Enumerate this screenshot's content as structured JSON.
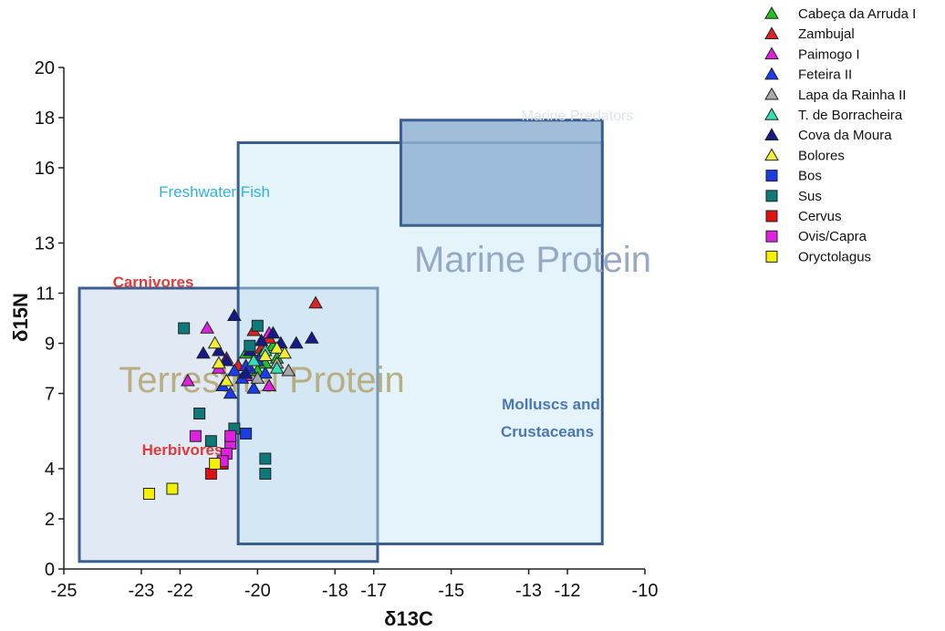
{
  "chart_data": {
    "type": "scatter",
    "xlabel": "δ13C",
    "ylabel": "δ15N",
    "xlim": [
      -25,
      -10
    ],
    "ylim": [
      0,
      20
    ],
    "x_ticks": [
      -25,
      -23,
      -22,
      -20,
      -18,
      -17,
      -15,
      -13,
      -12,
      -10
    ],
    "y_ticks": [
      0,
      2,
      4,
      7,
      9,
      11,
      13,
      16,
      18,
      20
    ],
    "grid": false,
    "legend_position": "top-right",
    "regions": [
      {
        "label": "Terrestrial Protein",
        "x_range": [
          -24.6,
          -16.9
        ],
        "y_range": [
          0.3,
          11.2
        ],
        "fill": "#c9d7ec",
        "stroke": "#3a5f8f",
        "label_color": "#b8ae82"
      },
      {
        "label": "Marine Protein",
        "x_range": [
          -20.5,
          -11.1
        ],
        "y_range": [
          1.0,
          17.0
        ],
        "fill": "#c6e4f5",
        "stroke": "#3a5f8f",
        "label_color": "#96a8c2"
      },
      {
        "label": "Marine Predators",
        "x_range": [
          -16.3,
          -11.1
        ],
        "y_range": [
          13.7,
          17.9
        ],
        "fill": "#8fb1d3",
        "stroke": "#3a5f8f",
        "label_color": "#dbe4ef"
      }
    ],
    "annotations": [
      {
        "text": "Freshwater Fish",
        "color": "#2fb0e6"
      },
      {
        "text": "Carnivores",
        "color": "#e03a3a"
      },
      {
        "text": "Herbivores",
        "color": "#e03a3a"
      },
      {
        "text": "Molluscs and",
        "color": "#4a78b5"
      },
      {
        "text": "Crustaceans",
        "color": "#4a78b5"
      }
    ],
    "series": [
      {
        "name": "Cabeça da Arruda I",
        "marker": "triangle",
        "color": "#22c022",
        "points": [
          [
            -20.3,
            8.6
          ],
          [
            -19.8,
            8.2
          ],
          [
            -19.6,
            8.9
          ],
          [
            -20.0,
            7.9
          ],
          [
            -19.5,
            8.4
          ]
        ]
      },
      {
        "name": "Zambujal",
        "marker": "triangle",
        "color": "#dd2222",
        "points": [
          [
            -18.5,
            10.6
          ],
          [
            -20.1,
            9.5
          ],
          [
            -19.7,
            9.2
          ],
          [
            -20.5,
            8.1
          ],
          [
            -19.9,
            8.8
          ]
        ]
      },
      {
        "name": "Paimogo I",
        "marker": "triangle",
        "color": "#dd22dd",
        "points": [
          [
            -21.3,
            9.6
          ],
          [
            -21.8,
            7.5
          ],
          [
            -21.0,
            8.0
          ],
          [
            -19.7,
            9.4
          ],
          [
            -20.8,
            8.4
          ],
          [
            -19.7,
            7.3
          ],
          [
            -20.3,
            7.7
          ]
        ]
      },
      {
        "name": "Feteira II",
        "marker": "triangle",
        "color": "#1a3cf0",
        "points": [
          [
            -20.9,
            7.3
          ],
          [
            -20.4,
            7.6
          ],
          [
            -20.0,
            8.3
          ],
          [
            -20.6,
            7.9
          ],
          [
            -19.8,
            7.8
          ],
          [
            -20.2,
            8.0
          ],
          [
            -20.7,
            7.0
          ],
          [
            -20.1,
            7.2
          ],
          [
            -19.9,
            8.5
          ],
          [
            -20.3,
            8.1
          ]
        ]
      },
      {
        "name": "Lapa da Rainha II",
        "marker": "triangle",
        "color": "#a8a8a8",
        "points": [
          [
            -19.2,
            7.9
          ],
          [
            -19.5,
            8.2
          ],
          [
            -20.0,
            7.6
          ]
        ]
      },
      {
        "name": "T. de Borracheira",
        "marker": "triangle",
        "color": "#33e0b0",
        "points": [
          [
            -19.5,
            8.0
          ],
          [
            -19.8,
            8.7
          ],
          [
            -20.1,
            8.3
          ]
        ]
      },
      {
        "name": "Cova da Moura",
        "marker": "triangle",
        "color": "#141a8a",
        "points": [
          [
            -20.6,
            10.1
          ],
          [
            -21.4,
            8.6
          ],
          [
            -21.0,
            8.7
          ],
          [
            -20.2,
            8.7
          ],
          [
            -19.9,
            9.1
          ],
          [
            -19.4,
            9.0
          ],
          [
            -19.6,
            9.4
          ],
          [
            -19.0,
            9.0
          ],
          [
            -18.6,
            9.2
          ],
          [
            -20.3,
            7.8
          ],
          [
            -20.8,
            8.3
          ]
        ]
      },
      {
        "name": "Bolores",
        "marker": "triangle",
        "color": "#f2ef33",
        "points": [
          [
            -21.1,
            9.0
          ],
          [
            -21.0,
            8.2
          ],
          [
            -19.8,
            8.5
          ],
          [
            -19.5,
            8.8
          ],
          [
            -20.8,
            7.5
          ],
          [
            -19.3,
            8.6
          ]
        ]
      },
      {
        "name": "Bos",
        "marker": "square",
        "color": "#1a3ce0",
        "points": [
          [
            -20.3,
            5.4
          ]
        ]
      },
      {
        "name": "Sus",
        "marker": "square",
        "color": "#0f7878",
        "points": [
          [
            -21.9,
            9.6
          ],
          [
            -20.0,
            9.7
          ],
          [
            -21.5,
            6.2
          ],
          [
            -21.2,
            5.1
          ],
          [
            -20.6,
            5.6
          ],
          [
            -19.8,
            4.4
          ],
          [
            -19.8,
            3.8
          ],
          [
            -20.2,
            8.9
          ]
        ]
      },
      {
        "name": "Cervus",
        "marker": "square",
        "color": "#dd1111",
        "points": [
          [
            -21.2,
            3.8
          ],
          [
            -20.9,
            4.2
          ]
        ]
      },
      {
        "name": "Ovis/Capra",
        "marker": "square",
        "color": "#e020e0",
        "points": [
          [
            -21.6,
            5.3
          ],
          [
            -20.7,
            5.0
          ],
          [
            -20.8,
            4.6
          ],
          [
            -20.9,
            4.3
          ],
          [
            -20.7,
            5.3
          ]
        ]
      },
      {
        "name": "Oryctolagus",
        "marker": "square",
        "color": "#f5f000",
        "points": [
          [
            -22.8,
            3.0
          ],
          [
            -22.2,
            3.2
          ],
          [
            -21.1,
            4.2
          ]
        ]
      }
    ]
  }
}
